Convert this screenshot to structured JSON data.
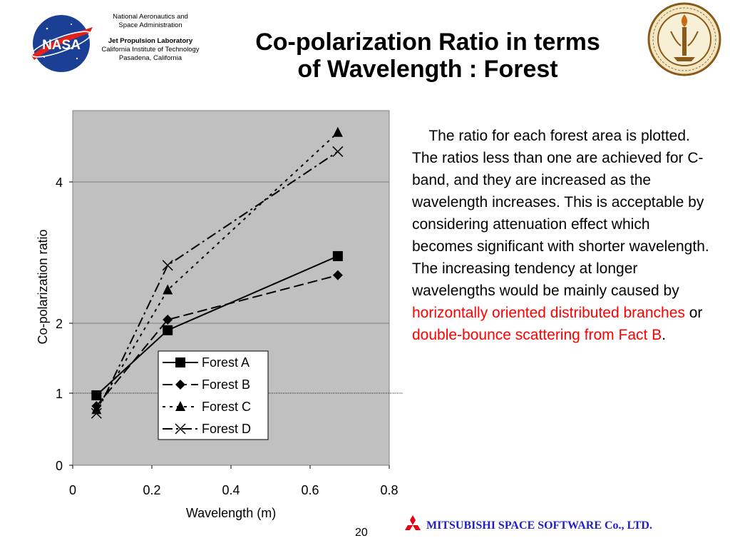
{
  "header": {
    "nasa_line1": "National Aeronautics and",
    "nasa_line2": "Space Administration",
    "jpl_line": "Jet Propulsion Laboratory",
    "caltech_line": "California Institute of Technology",
    "location_line": "Pasadena, California",
    "logo_nasa_text": "NASA"
  },
  "title": {
    "line1": "Co-polarization Ratio in terms",
    "line2": "of Wavelength : Forest"
  },
  "description": {
    "p1": "The ratio for each forest area is plotted. The ratios less than one are achieved for C-band, and they are increased as the wavelength increases. This is acceptable by considering attenuation effect which becomes significant with shorter wavelength. The increasing tendency at longer wavelengths would be mainly caused by ",
    "red1": "horizontally oriented distributed branches",
    "mid": " or ",
    "red2": "double-bounce scattering from Fact B",
    "end": "."
  },
  "footer": {
    "company": "MITSUBISHI SPACE SOFTWARE Co., LTD.",
    "page_number": "20"
  },
  "colors": {
    "plot_background": "#c0c0c0",
    "highlight_text": "#ff0000",
    "company_text": "#1f1fc8"
  },
  "chart_data": {
    "type": "line",
    "xlabel": "Wavelength (m)",
    "ylabel": "Co-polarization ratio",
    "xlim": [
      0,
      0.8
    ],
    "ylim": [
      0,
      5
    ],
    "xticks": [
      0,
      0.2,
      0.4,
      0.6,
      0.8
    ],
    "xtick_labels": [
      "0",
      "0.2",
      "0.4",
      "0.6",
      "0.8"
    ],
    "yticks": [
      0,
      1,
      2,
      4
    ],
    "ytick_labels": [
      "0",
      "1",
      "2",
      "4"
    ],
    "gridlines_y": [
      2,
      4
    ],
    "reference_line_y": 1,
    "legend_position": "lower-right",
    "x": [
      0.06,
      0.24,
      0.67
    ],
    "series": [
      {
        "name": "Forest A",
        "values": [
          0.97,
          1.9,
          2.95
        ],
        "marker": "square",
        "dash": "solid"
      },
      {
        "name": "Forest B",
        "values": [
          0.82,
          2.05,
          2.68
        ],
        "marker": "diamond",
        "dash": "long-dash"
      },
      {
        "name": "Forest C",
        "values": [
          0.77,
          2.47,
          4.7
        ],
        "marker": "triangle",
        "dash": "short-dash"
      },
      {
        "name": "Forest D",
        "values": [
          0.72,
          2.82,
          4.43
        ],
        "marker": "x",
        "dash": "dash-dot"
      }
    ]
  }
}
